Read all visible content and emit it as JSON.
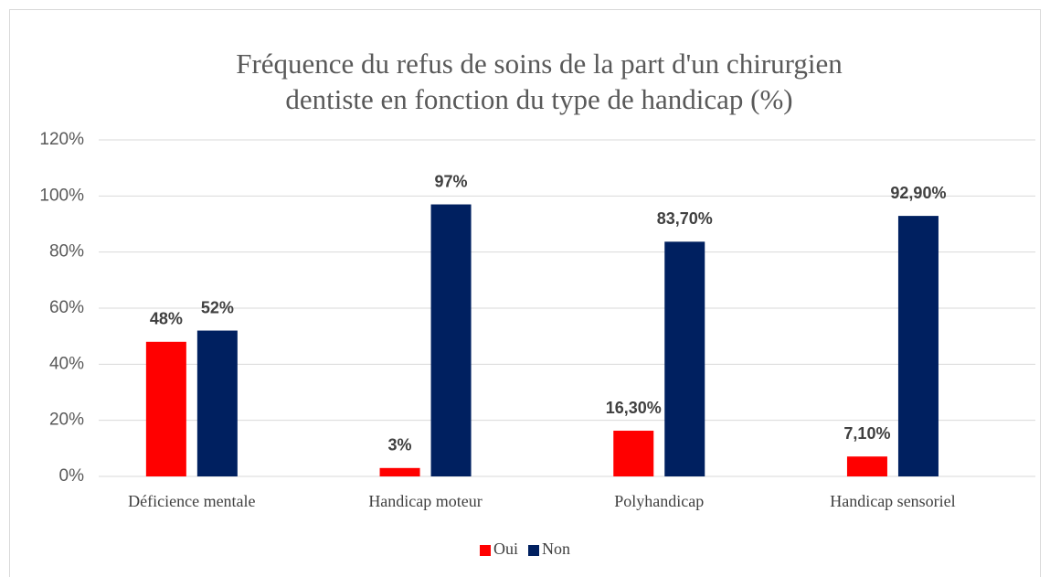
{
  "chart_data": {
    "type": "bar",
    "title": [
      "Fréquence du refus de soins de la part d'un chirurgien",
      "dentiste en fonction du type de handicap (%)"
    ],
    "categories": [
      "Déficience mentale",
      "Handicap moteur",
      "Polyhandicap",
      "Handicap sensoriel"
    ],
    "series": [
      {
        "name": "Oui",
        "color": "#ff0000",
        "values": [
          48,
          3,
          16.3,
          7.1
        ],
        "value_labels": [
          "48%",
          "3%",
          "16,30%",
          "7,10%"
        ]
      },
      {
        "name": "Non",
        "color": "#002060",
        "values": [
          52,
          97,
          83.7,
          92.9
        ],
        "value_labels": [
          "52%",
          "97%",
          "83,70%",
          "92,90%"
        ]
      }
    ],
    "ylim": [
      0,
      120
    ],
    "yticks": [
      {
        "value": 0,
        "label": "0%"
      },
      {
        "value": 20,
        "label": "20%"
      },
      {
        "value": 40,
        "label": "40%"
      },
      {
        "value": 60,
        "label": "60%"
      },
      {
        "value": 80,
        "label": "80%"
      },
      {
        "value": 100,
        "label": "100%"
      },
      {
        "value": 120,
        "label": "120%"
      }
    ],
    "grid": true,
    "legend": "bottom"
  }
}
